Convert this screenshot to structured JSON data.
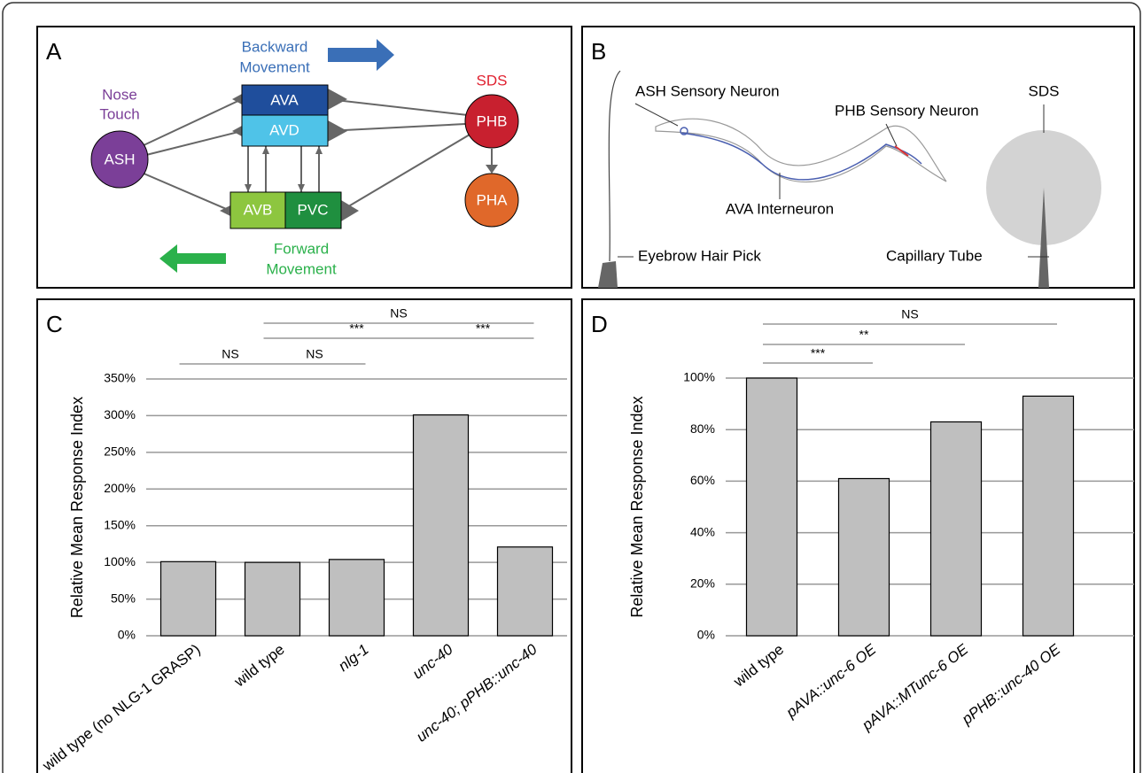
{
  "panel_a": {
    "label": "A",
    "nose_touch": [
      "Nose",
      "Touch"
    ],
    "backward": [
      "Backward",
      "Movement"
    ],
    "forward": [
      "Forward",
      "Movement"
    ],
    "sds": "SDS",
    "nodes": {
      "ash": "ASH",
      "ava": "AVA",
      "avd": "AVD",
      "avb": "AVB",
      "pvc": "PVC",
      "phb": "PHB",
      "pha": "PHA"
    }
  },
  "panel_b": {
    "label": "B",
    "ash_neuron": "ASH Sensory Neuron",
    "phb_neuron": "PHB Sensory Neuron",
    "sds": "SDS",
    "ava": "AVA Interneuron",
    "pick": "Eyebrow Hair Pick",
    "tube": "Capillary Tube"
  },
  "chart_data": [
    {
      "type": "bar",
      "panel_label": "C",
      "ylabel": "Relative Mean Response Index",
      "color": "#bfbfbf",
      "grid": true,
      "categories": [
        "wild type (no NLG-1 GRASP)",
        "wild type",
        "nlg-1",
        "unc-40",
        "unc-40; pPHB::unc-40"
      ],
      "values": [
        101,
        100,
        104,
        301,
        121
      ],
      "ylim": [
        0,
        350
      ],
      "yticks": [
        {
          "value": 0,
          "label": "0%"
        },
        {
          "value": 50,
          "label": "50%"
        },
        {
          "value": 100,
          "label": "100%"
        },
        {
          "value": 150,
          "label": "150%"
        },
        {
          "value": 200,
          "label": "200%"
        },
        {
          "value": 250,
          "label": "250%"
        },
        {
          "value": 300,
          "label": "300%"
        },
        {
          "value": 350,
          "label": "350%"
        }
      ],
      "comparisons": [
        {
          "label": "NS",
          "from": 0,
          "to": 1
        },
        {
          "label": "NS",
          "from": 1,
          "to": 2
        },
        {
          "label": "***",
          "from": 1,
          "to": 3
        },
        {
          "label": "***",
          "from": 3,
          "to": 4
        },
        {
          "label": "NS",
          "from": 1,
          "to": 4
        }
      ]
    },
    {
      "type": "bar",
      "panel_label": "D",
      "ylabel": "Relative Mean Response Index",
      "color": "#bfbfbf",
      "grid": true,
      "categories": [
        "wild type",
        "pAVA::unc-6 OE",
        "pAVA::MTunc-6 OE",
        "pPHB::unc-40 OE"
      ],
      "values": [
        100,
        61,
        83,
        93
      ],
      "ylim": [
        0,
        100
      ],
      "yticks": [
        {
          "value": 0,
          "label": "0%"
        },
        {
          "value": 20,
          "label": "20%"
        },
        {
          "value": 40,
          "label": "40%"
        },
        {
          "value": 60,
          "label": "60%"
        },
        {
          "value": 80,
          "label": "80%"
        },
        {
          "value": 100,
          "label": "100%"
        }
      ],
      "comparisons": [
        {
          "label": "***",
          "from": 0,
          "to": 1
        },
        {
          "label": "**",
          "from": 0,
          "to": 2
        },
        {
          "label": "NS",
          "from": 0,
          "to": 3
        }
      ]
    }
  ]
}
